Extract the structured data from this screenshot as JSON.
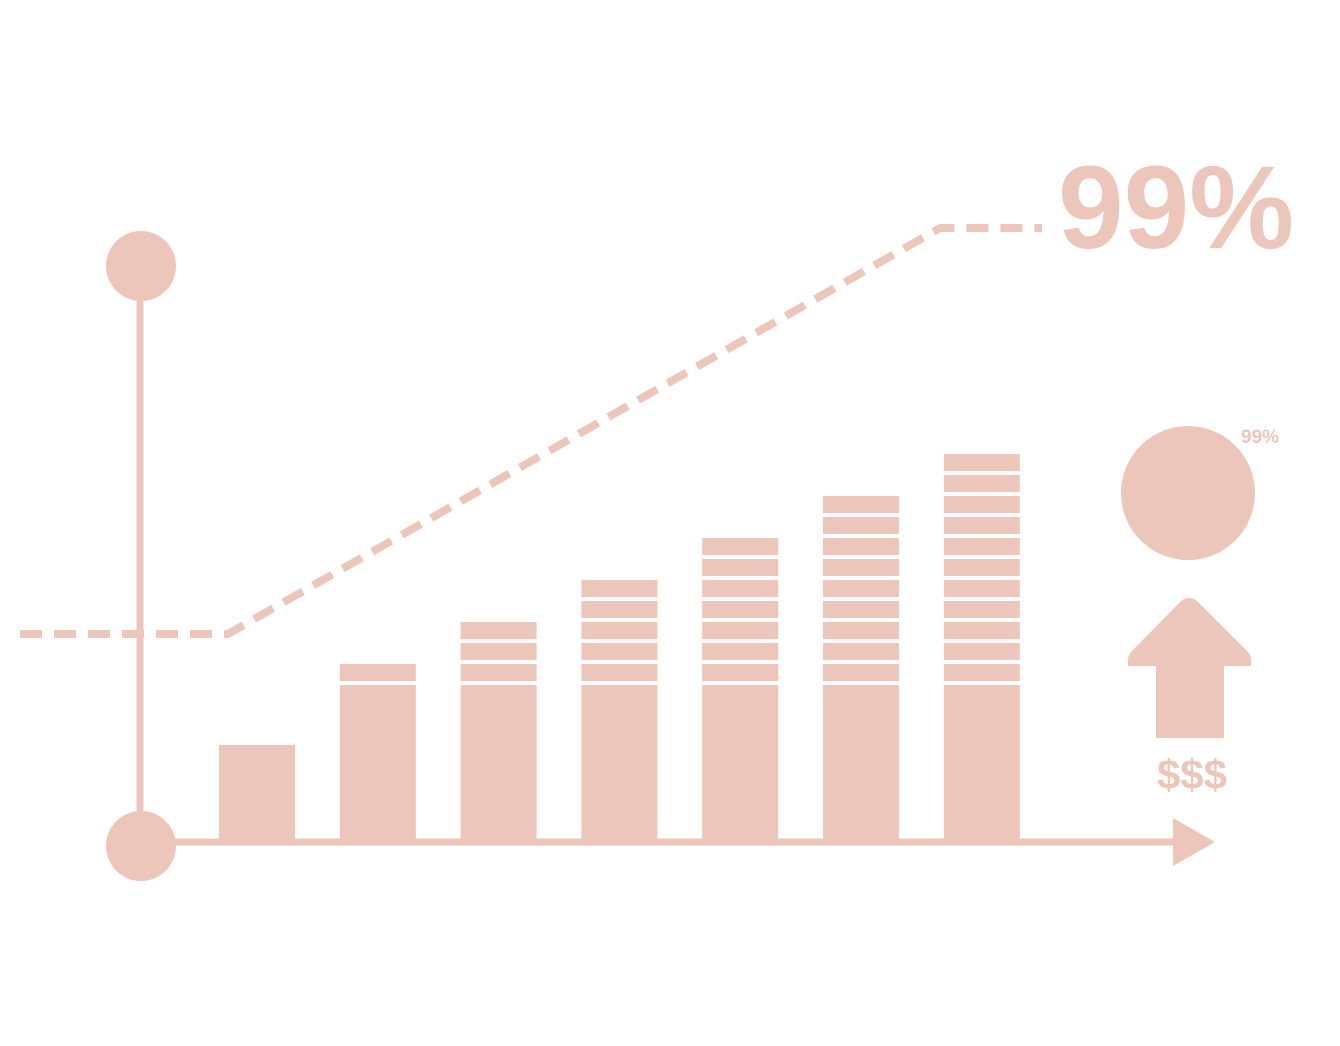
{
  "chart_data": {
    "type": "bar",
    "categories": [
      "",
      "",
      "",
      "",
      "",
      "",
      ""
    ],
    "values": [
      1,
      3,
      5,
      7,
      9,
      11,
      13
    ],
    "trend_line": {
      "style": "dashed",
      "start_value": 0,
      "end_value": 99
    },
    "labels": {
      "headline": "99%",
      "badge": "99%",
      "money": "$$$"
    },
    "icons": {
      "badge": "circle-icon",
      "arrow": "up-arrow-icon"
    },
    "colors": {
      "accent": "#ecc6bb",
      "background": "#ffffff"
    },
    "grid": false,
    "legend": "none"
  }
}
